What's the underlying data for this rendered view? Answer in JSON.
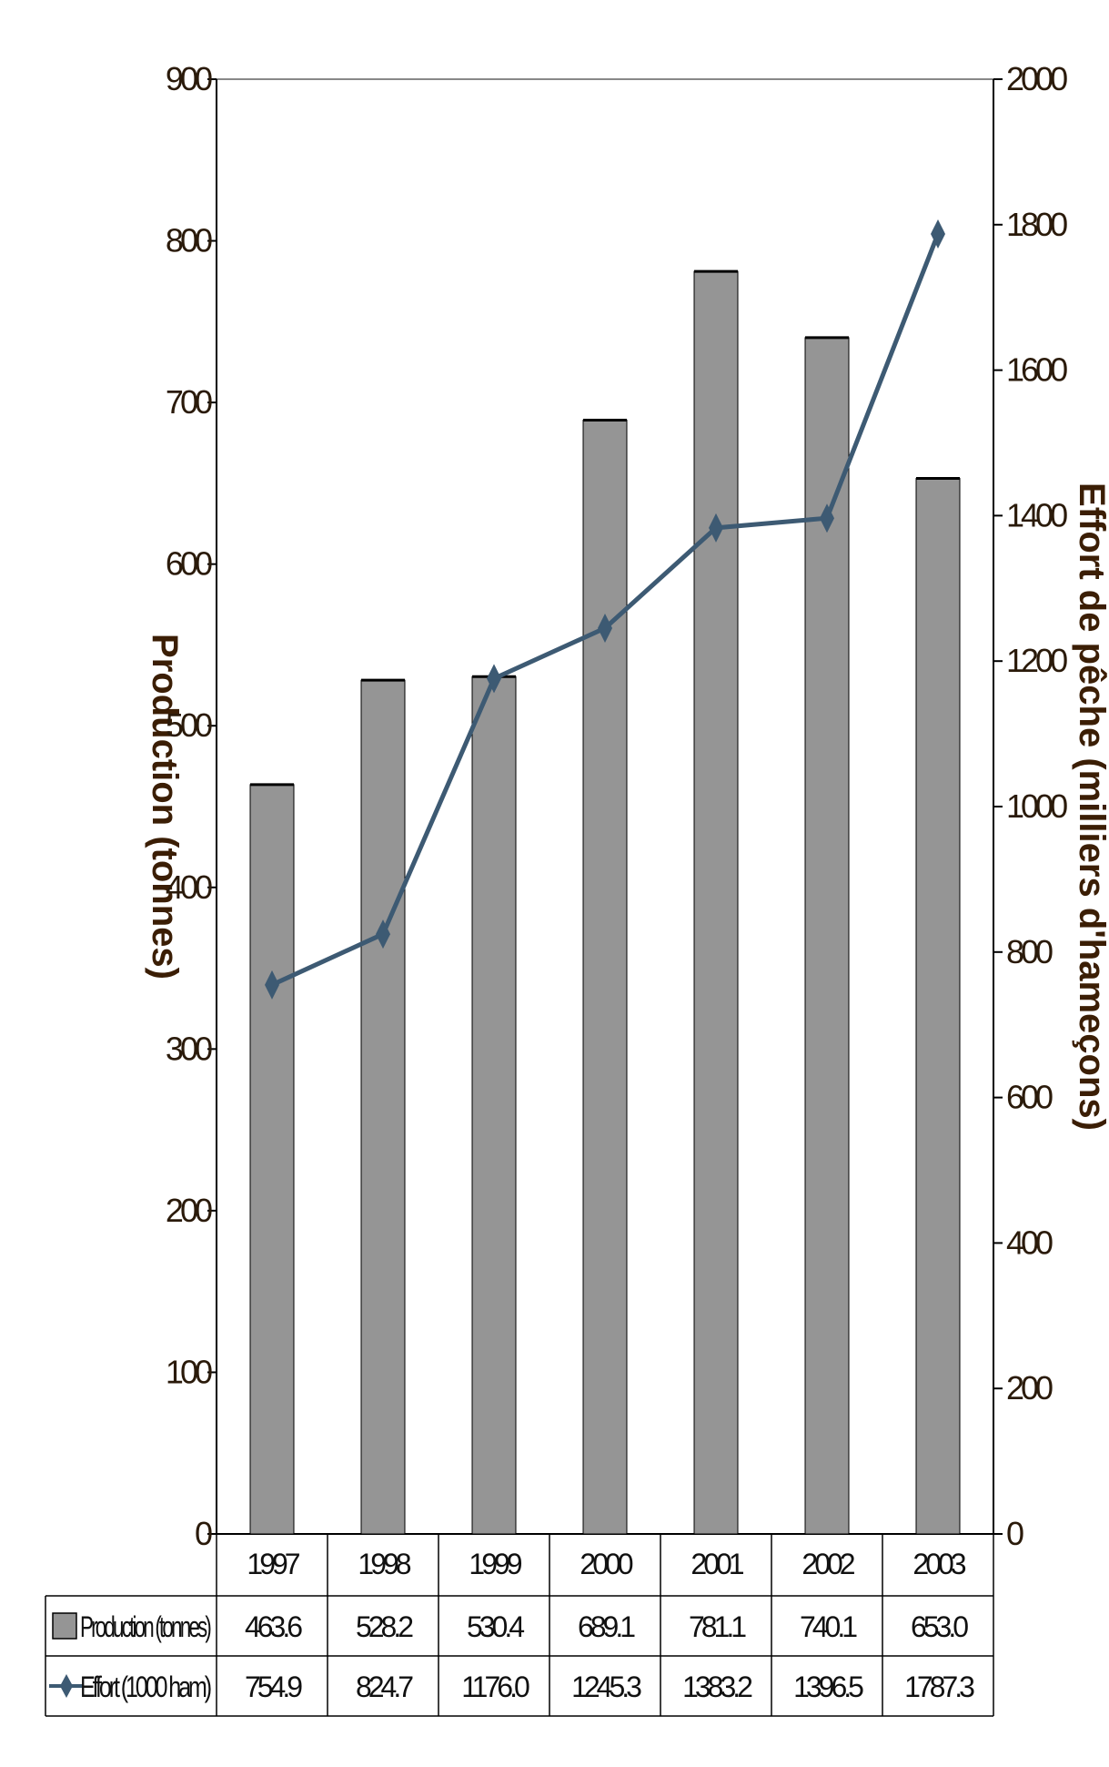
{
  "chart_data": {
    "type": "bar",
    "categories": [
      "1997",
      "1998",
      "1999",
      "2000",
      "2001",
      "2002",
      "2003"
    ],
    "series": [
      {
        "name": "Production (tonnes)",
        "type": "bar",
        "axis": "left",
        "color": "#959595",
        "values": [
          463.6,
          528.2,
          530.4,
          689.1,
          781.1,
          740.1,
          653.0
        ]
      },
      {
        "name": "Effort (1000 ham)",
        "type": "line",
        "axis": "right",
        "color": "#3d5a73",
        "marker": "diamond",
        "values": [
          754.9,
          824.7,
          1176.0,
          1245.3,
          1383.2,
          1396.5,
          1787.3
        ]
      }
    ],
    "ylabel": "Production (tonnes)",
    "y2label": "Effort de pêche (milliers d'hameçons)",
    "ylim": [
      0,
      900
    ],
    "y2lim": [
      0,
      2000
    ],
    "yticks": [
      "900",
      "800",
      "700",
      "600",
      "500",
      "400",
      "300",
      "200",
      "100",
      "0"
    ],
    "y2ticks": [
      "2000",
      "1800",
      "1600",
      "1400",
      "1200",
      "1000",
      "800",
      "600",
      "400",
      "200",
      "0"
    ],
    "table_rows": [
      {
        "label": "Production (tonnes)",
        "values": [
          "463.6",
          "528.2",
          "530.4",
          "689.1",
          "781.1",
          "740.1",
          "653.0"
        ]
      },
      {
        "label": "Effort (1000 ham)",
        "values": [
          "754.9",
          "824.7",
          "1176.0",
          "1245.3",
          "1383.2",
          "1396.5",
          "1787.3"
        ]
      }
    ],
    "data_table": true
  }
}
